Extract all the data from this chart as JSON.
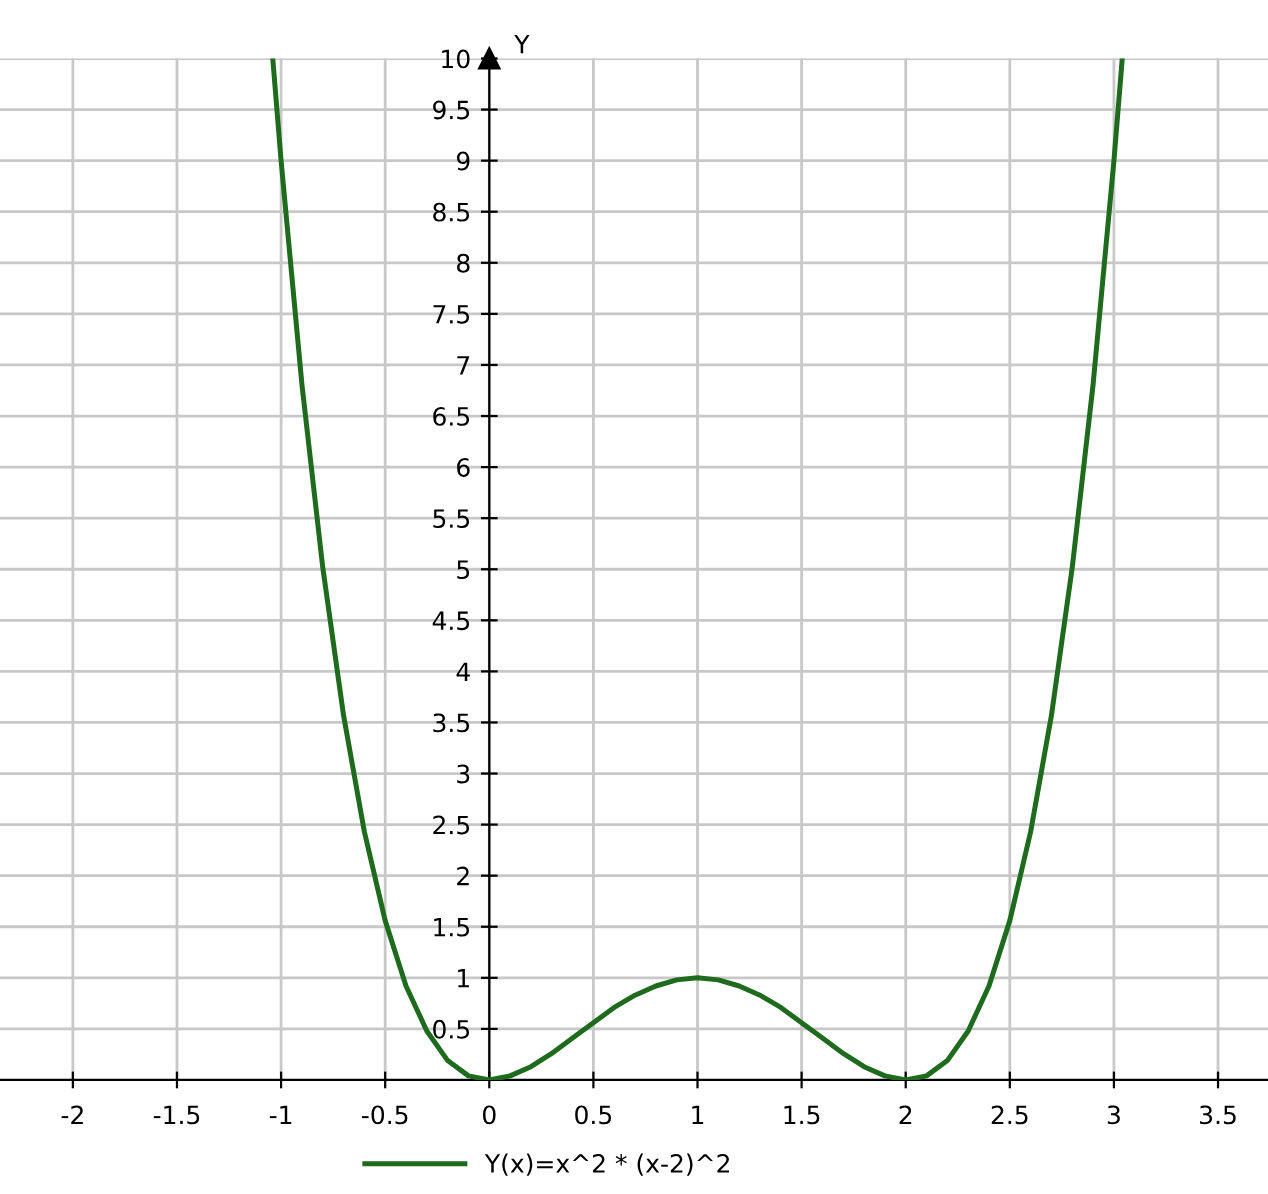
{
  "chart_data": {
    "type": "line",
    "ylabel": "Y",
    "x": [
      -1.04,
      -1.0,
      -0.9,
      -0.8,
      -0.7,
      -0.6,
      -0.5,
      -0.4,
      -0.3,
      -0.2,
      -0.1,
      0,
      0.1,
      0.2,
      0.3,
      0.4,
      0.5,
      0.6,
      0.7,
      0.8,
      0.9,
      1.0,
      1.1,
      1.2,
      1.3,
      1.4,
      1.5,
      1.6,
      1.7,
      1.8,
      1.9,
      2.0,
      2.1,
      2.2,
      2.3,
      2.4,
      2.5,
      2.6,
      2.7,
      2.8,
      2.9,
      3.0,
      3.04
    ],
    "series": [
      {
        "name": "Y(x)=x^2 * (x-2)^2",
        "color": "#1e6b1e",
        "values": [
          10,
          9,
          6.81,
          5.02,
          3.57,
          2.43,
          1.56,
          0.92,
          0.48,
          0.19,
          0.04,
          0,
          0.04,
          0.13,
          0.26,
          0.41,
          0.56,
          0.71,
          0.83,
          0.92,
          0.98,
          1,
          0.98,
          0.92,
          0.83,
          0.71,
          0.56,
          0.41,
          0.26,
          0.13,
          0.04,
          0,
          0.04,
          0.19,
          0.48,
          0.92,
          1.56,
          2.43,
          3.57,
          5.02,
          6.81,
          9,
          10
        ]
      }
    ],
    "xlim": [
      -2.35,
      3.74
    ],
    "ylim": [
      0,
      10
    ],
    "xticks": [
      -2,
      -1.5,
      -1,
      -0.5,
      {
        "value": 0,
        "label": "0"
      },
      0.5,
      1,
      1.5,
      2,
      2.5,
      3,
      3.5
    ],
    "yticks": [
      0.5,
      1,
      1.5,
      2,
      2.5,
      3,
      3.5,
      4,
      4.5,
      5,
      5.5,
      6,
      6.5,
      7,
      7.5,
      8,
      8.5,
      9,
      9.5,
      10
    ],
    "grid": true,
    "legend": "bottom",
    "marker": "none",
    "line_style": "solid"
  }
}
